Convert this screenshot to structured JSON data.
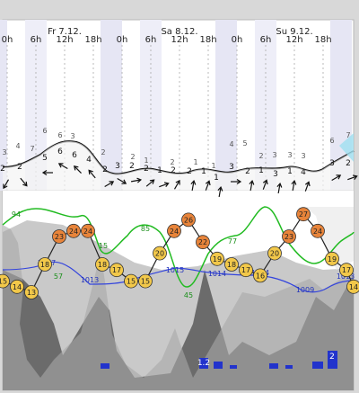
{
  "chart_data": {
    "type": "line",
    "days": [
      {
        "label": "Fr 7.12."
      },
      {
        "label": "Sa 8.12."
      },
      {
        "label": "Su 9.12."
      }
    ],
    "hour_ticks": [
      "0h",
      "6h",
      "12h",
      "18h",
      "0h",
      "6h",
      "12h",
      "18h",
      "0h",
      "6h",
      "12h",
      "18h"
    ],
    "wave_heights": {
      "upper_numbers": [
        "3",
        "4",
        "7",
        "6",
        "6",
        "3",
        "2",
        "2",
        "1",
        "2",
        "1",
        "1",
        "4",
        "5",
        "2",
        "3",
        "3",
        "3",
        "6",
        "7"
      ],
      "lower_numbers": [
        "2",
        "2",
        "5",
        "6",
        "6",
        "4",
        "2",
        "3",
        "2",
        "2",
        "1",
        "2",
        "2",
        "1",
        "1",
        "3",
        "2",
        "1",
        "3",
        "1",
        "4",
        "3",
        "2"
      ]
    },
    "temperature": {
      "unit": "°C",
      "values": [
        15,
        14,
        13,
        18,
        23,
        24,
        24,
        18,
        17,
        15,
        15,
        20,
        24,
        26,
        22,
        19,
        18,
        17,
        16,
        20,
        23,
        27,
        24,
        19,
        17,
        14
      ]
    },
    "humidity": {
      "labels": [
        "94",
        "15",
        "85",
        "77",
        "57",
        "45"
      ]
    },
    "pressure": {
      "unit": "hPa",
      "labels": [
        "1017",
        "1013",
        "1015",
        "1014",
        "1014",
        "1009",
        "1013"
      ]
    },
    "precipitation": {
      "labels": [
        "1.2",
        "2"
      ]
    },
    "colors": {
      "humidity_line": "#22bb22",
      "pressure_line": "#3344dd",
      "temperature_fill_warm": "#e8843a",
      "temperature_fill_cool": "#f2c84a",
      "precip_bar": "#2233cc",
      "night_band": "#e6e6f4",
      "day_band": "#ffffff"
    }
  }
}
